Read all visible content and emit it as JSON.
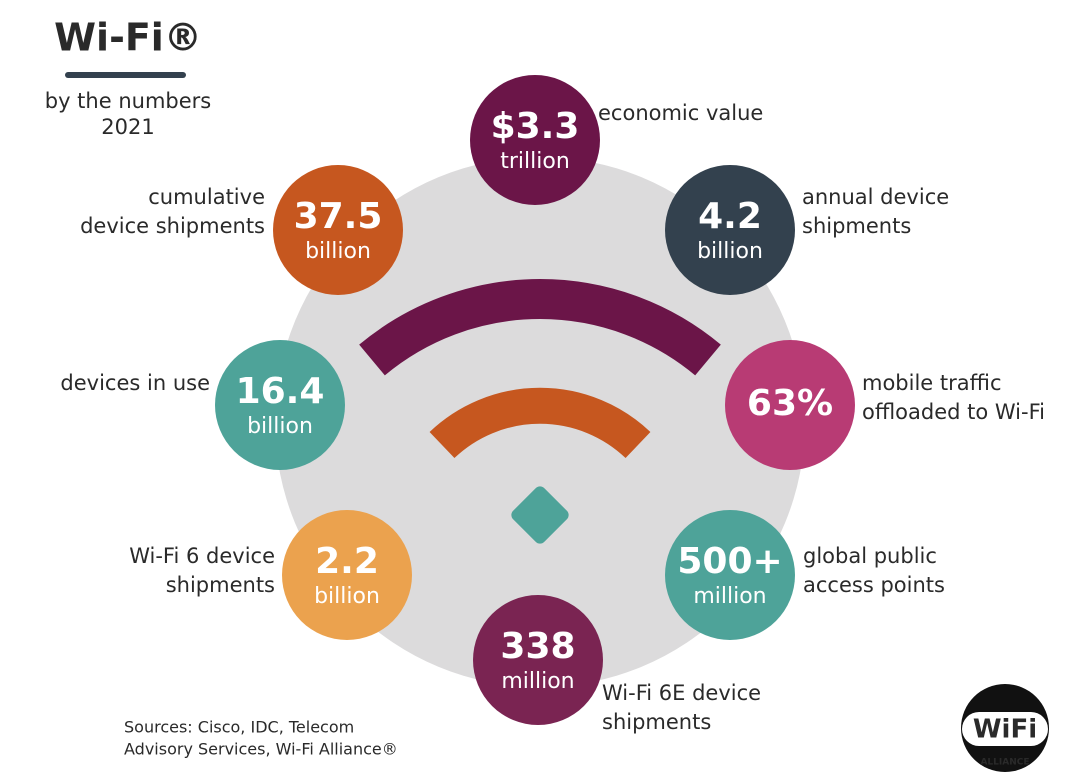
{
  "header": {
    "title": "Wi-Fi®",
    "subtitle": [
      "by the numbers",
      "2021"
    ]
  },
  "stats": [
    {
      "value": "$3.3",
      "unit": "trillion",
      "label": [
        "economic value"
      ]
    },
    {
      "value": "4.2",
      "unit": "billion",
      "label": [
        "annual device",
        "shipments"
      ]
    },
    {
      "value": "63%",
      "unit": null,
      "label": [
        "mobile traffic",
        "offloaded to Wi-Fi"
      ]
    },
    {
      "value": "500+",
      "unit": "million",
      "label": [
        "global public",
        "access points"
      ]
    },
    {
      "value": "338",
      "unit": "million",
      "label": [
        "Wi-Fi 6E device",
        "shipments"
      ]
    },
    {
      "value": "2.2",
      "unit": "billion",
      "label": [
        "Wi-Fi 6 device",
        "shipments"
      ]
    },
    {
      "value": "16.4",
      "unit": "billion",
      "label": [
        "devices in use"
      ]
    },
    {
      "value": "37.5",
      "unit": "billion",
      "label": [
        "cumulative",
        "device shipments"
      ]
    }
  ],
  "sources": [
    "Sources: Cisco, IDC, Telecom",
    "Advisory Services, Wi-Fi Alliance®"
  ],
  "logo": {
    "mark": "WiFi",
    "text": "ALLIANCE"
  }
}
